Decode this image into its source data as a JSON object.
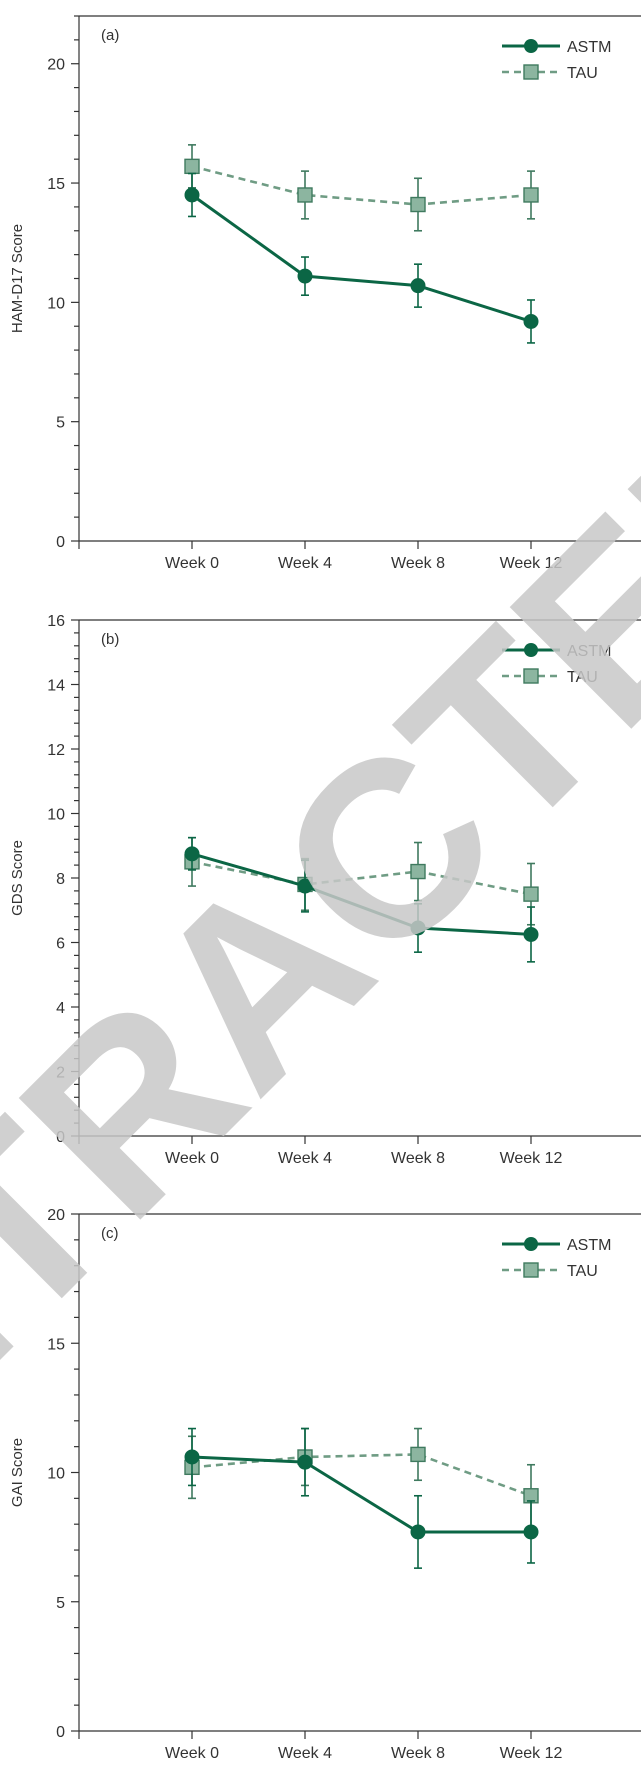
{
  "watermark": "RETRACTED",
  "colors": {
    "astm": "#0b6645",
    "tau_line": "#6f9c84",
    "tau_fill": "#8cb5a0",
    "tau_stroke": "#3f7a5f",
    "axis": "#333333",
    "watermark": "#c8c8c8"
  },
  "chart_data": [
    {
      "type": "line",
      "panel_tag": "(a)",
      "ylabel": "HAM-D17 Score",
      "xlabel": "",
      "categories": [
        "Week 0",
        "Week 4",
        "Week 8",
        "Week 12"
      ],
      "ylim": [
        0,
        22
      ],
      "yticks": [
        0,
        5,
        10,
        15,
        20
      ],
      "legend": "top-right",
      "grid": false,
      "series": [
        {
          "name": "ASTM",
          "key": "astm",
          "marker": "circle",
          "values": [
            14.5,
            11.1,
            10.7,
            9.2
          ],
          "err": [
            0.9,
            0.8,
            0.9,
            0.9
          ]
        },
        {
          "name": "TAU",
          "key": "tau",
          "marker": "square",
          "values": [
            15.7,
            14.5,
            14.1,
            14.5
          ],
          "err": [
            0.9,
            1.0,
            1.1,
            1.0
          ]
        }
      ]
    },
    {
      "type": "line",
      "panel_tag": "(b)",
      "ylabel": "GDS Score",
      "xlabel": "",
      "categories": [
        "Week 0",
        "Week 4",
        "Week 8",
        "Week 12"
      ],
      "ylim": [
        0,
        16
      ],
      "yticks": [
        0,
        2,
        4,
        6,
        8,
        10,
        12,
        14,
        16
      ],
      "legend": "top-right",
      "grid": false,
      "series": [
        {
          "name": "ASTM",
          "key": "astm",
          "marker": "circle",
          "values": [
            8.75,
            7.75,
            6.45,
            6.25
          ],
          "err": [
            0.5,
            0.8,
            0.75,
            0.85
          ]
        },
        {
          "name": "TAU",
          "key": "tau",
          "marker": "square",
          "values": [
            8.5,
            7.8,
            8.2,
            7.5
          ],
          "err": [
            0.75,
            0.8,
            0.9,
            0.95
          ]
        }
      ]
    },
    {
      "type": "line",
      "panel_tag": "(c)",
      "ylabel": "GAI Score",
      "xlabel": "",
      "categories": [
        "Week 0",
        "Week 4",
        "Week 8",
        "Week 12"
      ],
      "ylim": [
        0,
        20
      ],
      "yticks": [
        0,
        5,
        10,
        15,
        20
      ],
      "legend": "top-right",
      "grid": false,
      "series": [
        {
          "name": "ASTM",
          "key": "astm",
          "marker": "circle",
          "values": [
            10.6,
            10.4,
            7.7,
            7.7
          ],
          "err": [
            1.1,
            1.3,
            1.4,
            1.2
          ]
        },
        {
          "name": "TAU",
          "key": "tau",
          "marker": "square",
          "values": [
            10.2,
            10.6,
            10.7,
            9.1
          ],
          "err": [
            1.2,
            1.1,
            1.0,
            1.2
          ]
        }
      ]
    }
  ]
}
